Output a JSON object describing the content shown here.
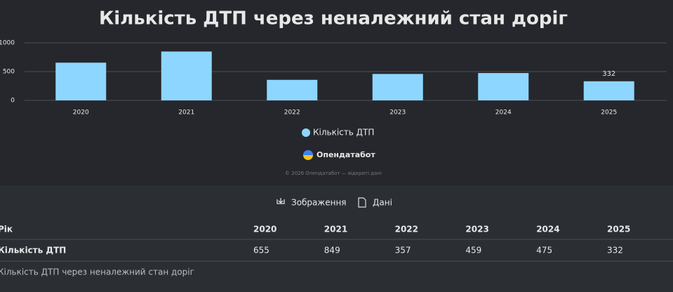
{
  "chart_data": {
    "type": "bar",
    "title": "Кількість ДТП через неналежний стан доріг",
    "categories": [
      "2020",
      "2021",
      "2022",
      "2023",
      "2024",
      "2025"
    ],
    "series": [
      {
        "name": "Кількість ДТП",
        "color": "#8dd6ff",
        "values": [
          655,
          849,
          357,
          459,
          475,
          332
        ]
      }
    ],
    "ylim": [
      0,
      1000
    ],
    "yticks": [
      0,
      500,
      1000
    ],
    "grid": true
  },
  "brand": "Опендатабот",
  "copyright": "© 2026 Опендатабот — відкриті дані",
  "buttons": [
    "Зображення",
    "Дані"
  ],
  "table": {
    "header_label": "Рік"
  }
}
